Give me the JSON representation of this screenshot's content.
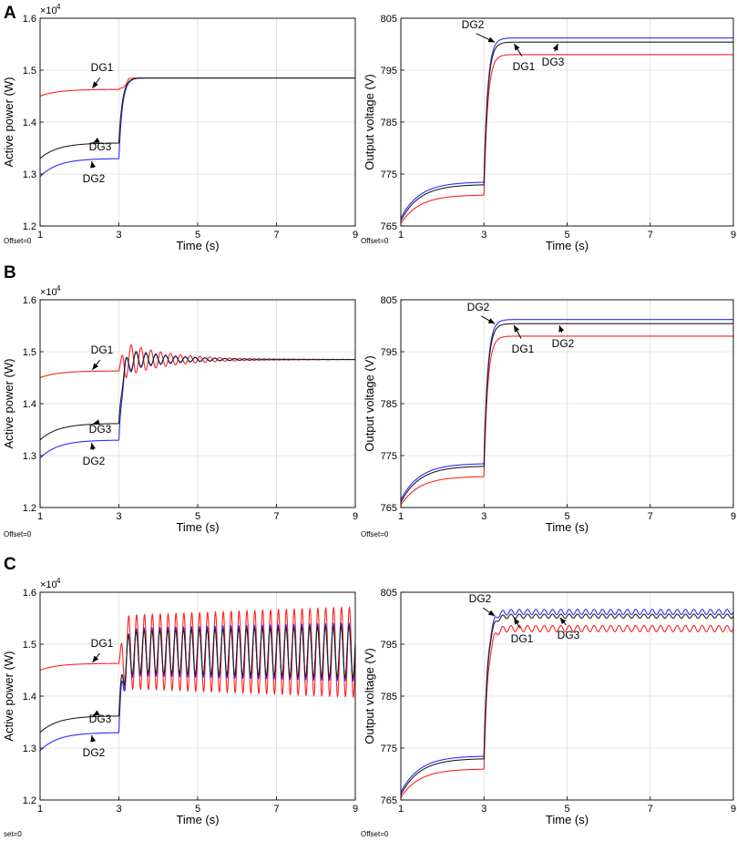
{
  "chart_data": [
    {
      "panel": "A",
      "type": "line",
      "ylabel": "Active power (W)",
      "xlabel": "Time (s)",
      "xlim": [
        1,
        9
      ],
      "xticks": [
        "1",
        "3",
        "5",
        "7",
        "9"
      ],
      "ylim": [
        1.2,
        1.6
      ],
      "yticks": [
        "1.2",
        "1.3",
        "1.4",
        "1.5",
        "1.6"
      ],
      "y_exponent_base": "×10",
      "y_exponent": "4",
      "offset_text": "Offset=0",
      "step_time": 3,
      "series": [
        {
          "name": "DG1",
          "color": "#ff2020",
          "start": 1.45,
          "pre": 1.463,
          "post": 1.485,
          "osc_amp": 0,
          "dip": 0.02
        },
        {
          "name": "DG2",
          "color": "#2b2bff",
          "start": 1.295,
          "pre": 1.33,
          "post": 1.485,
          "osc_amp": 0
        },
        {
          "name": "DG3",
          "color": "#202020",
          "start": 1.33,
          "pre": 1.36,
          "post": 1.485,
          "osc_amp": 0
        }
      ],
      "annotations": [
        {
          "text": "DG1",
          "series": "DG1",
          "t": 2.3
        },
        {
          "text": "DG3",
          "series": "DG3",
          "t": 2.3
        },
        {
          "text": "DG2",
          "series": "DG2",
          "t": 2.3
        }
      ]
    },
    {
      "panel": "A",
      "type": "line",
      "ylabel": "Output voltage (V)",
      "xlabel": "Time (s)",
      "xlim": [
        1,
        9
      ],
      "xticks": [
        "1",
        "3",
        "5",
        "7",
        "9"
      ],
      "ylim": [
        765,
        805
      ],
      "yticks": [
        "765",
        "775",
        "785",
        "795",
        "805"
      ],
      "offset_text": "Offset=0",
      "step_time": 3,
      "series": [
        {
          "name": "DG1",
          "color": "#ff2020",
          "start": 765.5,
          "pre": 771,
          "post": 798,
          "osc_amp": 0
        },
        {
          "name": "DG2",
          "color": "#2b2bff",
          "start": 766.5,
          "pre": 773.5,
          "post": 801.2,
          "osc_amp": 0
        },
        {
          "name": "DG3",
          "color": "#202020",
          "start": 766,
          "pre": 773,
          "post": 800.4,
          "osc_amp": 0
        }
      ],
      "annotations": [
        {
          "text": "DG2",
          "series": "DG2",
          "t": 3.3
        },
        {
          "text": "DG1",
          "series": "DG3",
          "t": 3.7
        },
        {
          "text": "DG3",
          "series": "DG3",
          "t": 4.8
        }
      ]
    },
    {
      "panel": "B",
      "type": "line",
      "ylabel": "Active power (W)",
      "xlabel": "Time (s)",
      "xlim": [
        1,
        9
      ],
      "xticks": [
        "1",
        "3",
        "5",
        "7",
        "9"
      ],
      "ylim": [
        1.2,
        1.6
      ],
      "yticks": [
        "1.2",
        "1.3",
        "1.4",
        "1.5",
        "1.6"
      ],
      "y_exponent_base": "×10",
      "y_exponent": "4",
      "offset_text": "Offset=0",
      "step_time": 3,
      "series": [
        {
          "name": "DG1",
          "color": "#ff2020",
          "start": 1.45,
          "pre": 1.463,
          "post": 1.485,
          "osc_amp": 0.038,
          "osc_period": 0.25,
          "osc_decay": 0.9,
          "osc_phase": 0
        },
        {
          "name": "DG2",
          "color": "#2b2bff",
          "start": 1.295,
          "pre": 1.33,
          "post": 1.485,
          "osc_amp": 0.025,
          "osc_period": 0.25,
          "osc_decay": 0.9,
          "osc_phase": 3.14
        },
        {
          "name": "DG3",
          "color": "#202020",
          "start": 1.33,
          "pre": 1.362,
          "post": 1.485,
          "osc_amp": 0.022,
          "osc_period": 0.25,
          "osc_decay": 0.9,
          "osc_phase": 3.14
        }
      ],
      "annotations": [
        {
          "text": "DG1",
          "series": "DG1",
          "t": 2.3
        },
        {
          "text": "DG3",
          "series": "DG3",
          "t": 2.3
        },
        {
          "text": "DG2",
          "series": "DG2",
          "t": 2.3
        }
      ]
    },
    {
      "panel": "B",
      "type": "line",
      "ylabel": "Output voltage (V)",
      "xlabel": "Time (s)",
      "xlim": [
        1,
        9
      ],
      "xticks": [
        "1",
        "3",
        "5",
        "7",
        "9"
      ],
      "ylim": [
        765,
        805
      ],
      "yticks": [
        "765",
        "775",
        "785",
        "795",
        "805"
      ],
      "offset_text": "Offset=0",
      "step_time": 3,
      "series": [
        {
          "name": "DG1",
          "color": "#ff2020",
          "start": 765.5,
          "pre": 771,
          "post": 798,
          "osc_amp": 0
        },
        {
          "name": "DG2",
          "color": "#2b2bff",
          "start": 766.5,
          "pre": 773.5,
          "post": 801.2,
          "osc_amp": 0
        },
        {
          "name": "DG3",
          "color": "#202020",
          "start": 766,
          "pre": 773,
          "post": 800.4,
          "osc_amp": 0
        }
      ],
      "annotations": [
        {
          "text": "DG2",
          "series": "DG2",
          "t": 3.3
        },
        {
          "text": "DG1",
          "series": "DG3",
          "t": 3.7
        },
        {
          "text": "DG2",
          "series": "DG3",
          "t": 4.8
        }
      ]
    },
    {
      "panel": "C",
      "type": "line",
      "ylabel": "Active power (W)",
      "xlabel": "Time (s)",
      "xlim": [
        1,
        9
      ],
      "xticks": [
        "1",
        "3",
        "5",
        "7",
        "9"
      ],
      "ylim": [
        1.2,
        1.6
      ],
      "yticks": [
        "1.2",
        "1.3",
        "1.4",
        "1.5",
        "1.6"
      ],
      "y_exponent_base": "×10",
      "y_exponent": "4",
      "offset_text": "set=0",
      "step_time": 3,
      "series": [
        {
          "name": "DG1",
          "color": "#ff2020",
          "start": 1.45,
          "pre": 1.463,
          "post": 1.485,
          "osc_amp": 0.07,
          "osc_period": 0.2,
          "osc_decay": -0.04,
          "osc_phase": 0
        },
        {
          "name": "DG2",
          "color": "#2b2bff",
          "start": 1.295,
          "pre": 1.33,
          "post": 1.485,
          "osc_amp": 0.045,
          "osc_period": 0.2,
          "osc_decay": -0.04,
          "osc_phase": 0.3
        },
        {
          "name": "DG3",
          "color": "#202020",
          "start": 1.33,
          "pre": 1.362,
          "post": 1.485,
          "osc_amp": 0.04,
          "osc_period": 0.2,
          "osc_decay": -0.04,
          "osc_phase": 0.3
        }
      ],
      "annotations": [
        {
          "text": "DG1",
          "series": "DG1",
          "t": 2.3
        },
        {
          "text": "DG3",
          "series": "DG3",
          "t": 2.3
        },
        {
          "text": "DG2",
          "series": "DG2",
          "t": 2.3
        }
      ]
    },
    {
      "panel": "C",
      "type": "line",
      "ylabel": "Output voltage (V)",
      "xlabel": "Time (s)",
      "xlim": [
        1,
        9
      ],
      "xticks": [
        "1",
        "3",
        "5",
        "7",
        "9"
      ],
      "ylim": [
        765,
        805
      ],
      "yticks": [
        "765",
        "775",
        "785",
        "795",
        "805"
      ],
      "offset_text": "Offset=0",
      "step_time": 3,
      "series": [
        {
          "name": "DG1",
          "color": "#ff2020",
          "start": 765.5,
          "pre": 771,
          "post": 798,
          "osc_amp": 0.6,
          "osc_period": 0.2,
          "osc_decay": 0,
          "osc_phase": 0
        },
        {
          "name": "DG2",
          "color": "#2b2bff",
          "start": 766.5,
          "pre": 773.5,
          "post": 801.2,
          "osc_amp": 0.5,
          "osc_period": 0.2,
          "osc_decay": 0,
          "osc_phase": 0
        },
        {
          "name": "DG3",
          "color": "#202020",
          "start": 766,
          "pre": 773,
          "post": 800.4,
          "osc_amp": 0.4,
          "osc_period": 0.2,
          "osc_decay": 0,
          "osc_phase": 0
        }
      ],
      "annotations": [
        {
          "text": "DG2",
          "series": "DG2",
          "t": 3.3
        },
        {
          "text": "DG1",
          "series": "DG3",
          "t": 3.7
        },
        {
          "text": "DG3",
          "series": "DG3",
          "t": 4.8
        }
      ]
    }
  ]
}
